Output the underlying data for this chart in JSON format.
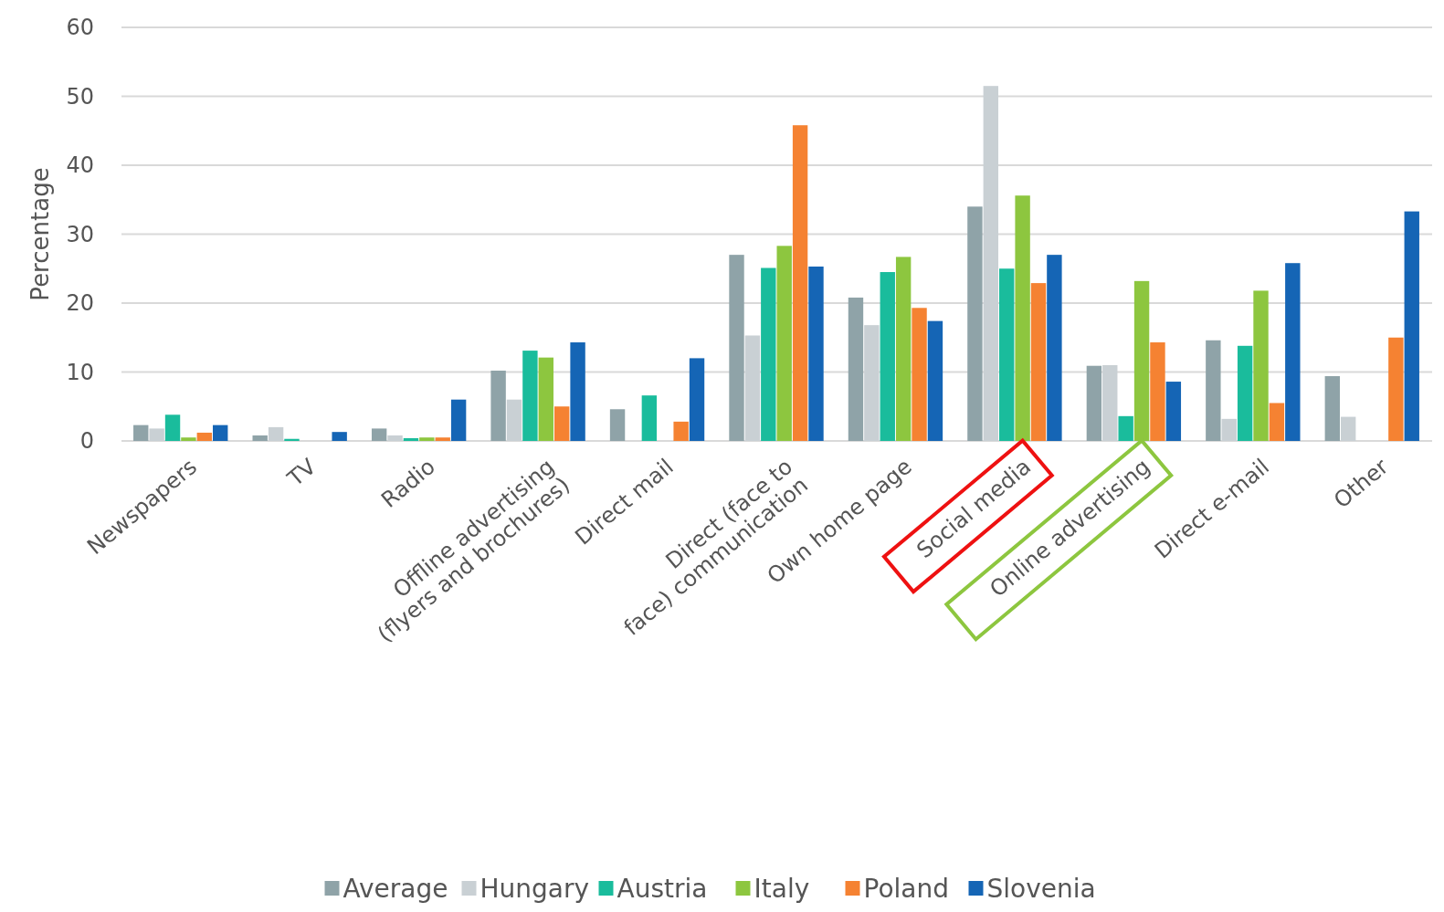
{
  "chart_data": {
    "type": "bar",
    "ylabel": "Percentage",
    "categories": [
      "Newspapers",
      "TV",
      "Radio",
      "Offline advertising (flyers and brochures)",
      "Direct mail",
      "Direct (face to face) communication",
      "Own home page",
      "Social media",
      "Online advertising",
      "Direct e-mail",
      "Other"
    ],
    "series": [
      {
        "name": "Average",
        "color": "#8fa3a8",
        "values": [
          2.3,
          0.8,
          1.8,
          10.2,
          4.6,
          27,
          20.8,
          34,
          10.9,
          14.6,
          9.4
        ]
      },
      {
        "name": "Hungary",
        "color": "#c9d0d4",
        "values": [
          1.8,
          2.0,
          0.8,
          6,
          0,
          15.3,
          16.8,
          51.5,
          11,
          3.2,
          3.5
        ]
      },
      {
        "name": "Austria",
        "color": "#1abc9c",
        "values": [
          3.8,
          0.3,
          0.4,
          13.1,
          6.6,
          25.1,
          24.5,
          25,
          3.6,
          13.8,
          0
        ]
      },
      {
        "name": "Italy",
        "color": "#8dc63f",
        "values": [
          0.5,
          0,
          0.5,
          12.1,
          0,
          28.3,
          26.7,
          35.6,
          23.2,
          21.8,
          0
        ]
      },
      {
        "name": "Poland",
        "color": "#f58232",
        "values": [
          1.2,
          0,
          0.5,
          5,
          2.8,
          45.8,
          19.3,
          22.9,
          14.3,
          5.5,
          15
        ]
      },
      {
        "name": "Slovenia",
        "color": "#1565b5",
        "values": [
          2.3,
          1.3,
          6,
          14.3,
          12,
          25.3,
          17.4,
          27,
          8.6,
          25.8,
          33.3
        ]
      }
    ],
    "ylim": [
      0,
      60
    ],
    "yticks": [
      0,
      10,
      20,
      30,
      40,
      50,
      60
    ],
    "grid": "y",
    "legend": "bottom"
  }
}
